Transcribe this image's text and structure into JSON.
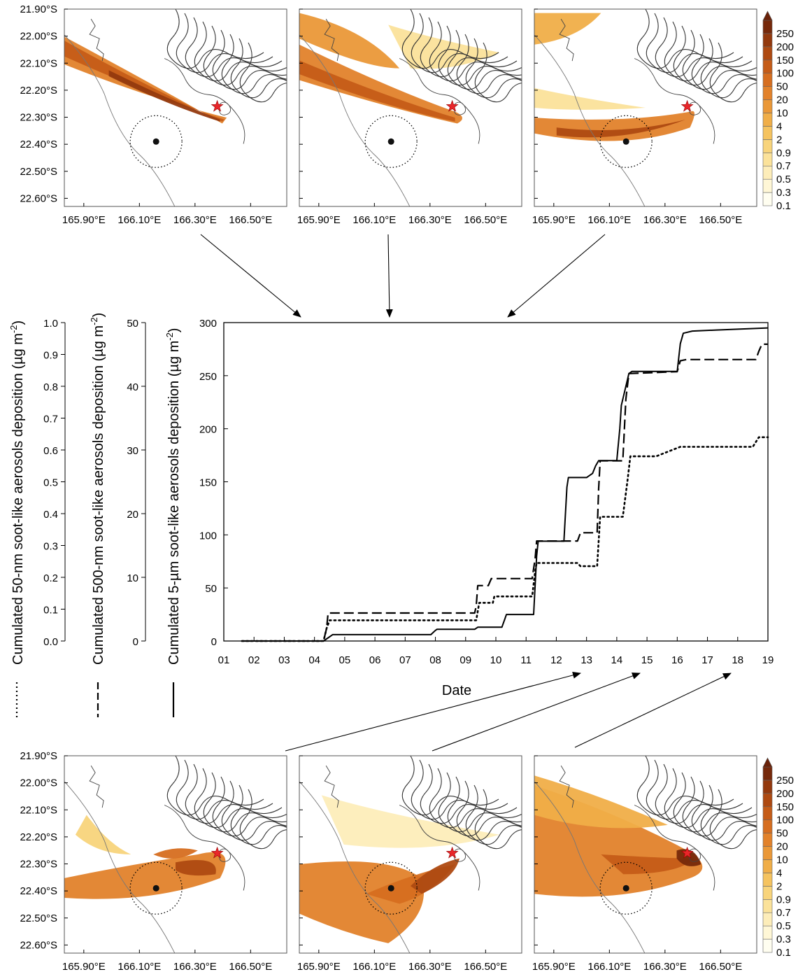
{
  "chart_data": {
    "main": {
      "type": "line",
      "xlabel": "Date",
      "xticks": [
        "01",
        "02",
        "03",
        "04",
        "05",
        "06",
        "07",
        "08",
        "09",
        "10",
        "11",
        "12",
        "13",
        "14",
        "15",
        "16",
        "17",
        "18",
        "19"
      ],
      "xlim": [
        1,
        19
      ],
      "axes": [
        {
          "label_parts": [
            "Cumulated 50-nm soot-like aerosols deposition (µg m",
            "-2",
            ")"
          ],
          "ticks": [
            "0.0",
            "0.1",
            "0.2",
            "0.3",
            "0.4",
            "0.5",
            "0.6",
            "0.7",
            "0.8",
            "0.9",
            "1.0"
          ],
          "ylim": [
            0,
            1.0
          ],
          "legend_style": "dotted"
        },
        {
          "label_parts": [
            "Cumulated 500-nm soot-like aerosols deposition (µg m",
            "-2",
            ")"
          ],
          "ticks": [
            "0",
            "10",
            "20",
            "30",
            "40",
            "50"
          ],
          "ylim": [
            0,
            50
          ],
          "legend_style": "dashed"
        },
        {
          "label_parts": [
            "Cumulated 5-µm soot-like aerosols deposition (µg m",
            "-2",
            ")"
          ],
          "ticks": [
            "0",
            "50",
            "100",
            "150",
            "200",
            "250",
            "300"
          ],
          "ylim": [
            0,
            300
          ],
          "legend_style": "solid"
        }
      ],
      "series": [
        {
          "style": "solid",
          "axis": 2,
          "points": [
            [
              1.6,
              0
            ],
            [
              4.3,
              0
            ],
            [
              4.45,
              3
            ],
            [
              4.6,
              6
            ],
            [
              7.85,
              6
            ],
            [
              8.0,
              10
            ],
            [
              8.05,
              11
            ],
            [
              9.3,
              11
            ],
            [
              9.4,
              13
            ],
            [
              10.2,
              13
            ],
            [
              10.3,
              21
            ],
            [
              10.35,
              25
            ],
            [
              11.25,
              25
            ],
            [
              11.35,
              80
            ],
            [
              11.4,
              94
            ],
            [
              12.25,
              94
            ],
            [
              12.35,
              145
            ],
            [
              12.4,
              154
            ],
            [
              13.0,
              154
            ],
            [
              13.2,
              158
            ],
            [
              13.3,
              165
            ],
            [
              13.4,
              170
            ],
            [
              14.0,
              170
            ],
            [
              14.1,
              200
            ],
            [
              14.15,
              222
            ],
            [
              14.3,
              240
            ],
            [
              14.4,
              252
            ],
            [
              14.5,
              254
            ],
            [
              16.0,
              254
            ],
            [
              16.1,
              280
            ],
            [
              16.2,
              290
            ],
            [
              16.5,
              292
            ],
            [
              17.3,
              293
            ],
            [
              19.0,
              295
            ]
          ]
        },
        {
          "style": "dashed",
          "axis": 1,
          "points": [
            [
              1.6,
              0
            ],
            [
              4.3,
              0
            ],
            [
              4.4,
              2
            ],
            [
              4.45,
              4.4
            ],
            [
              9.3,
              4.4
            ],
            [
              9.35,
              5.5
            ],
            [
              9.4,
              8.7
            ],
            [
              9.75,
              8.7
            ],
            [
              9.85,
              9.8
            ],
            [
              11.2,
              9.8
            ],
            [
              11.3,
              13
            ],
            [
              11.35,
              15.7
            ],
            [
              12.7,
              15.7
            ],
            [
              12.8,
              17
            ],
            [
              13.35,
              17
            ],
            [
              13.4,
              24
            ],
            [
              13.45,
              28.3
            ],
            [
              14.2,
              28.3
            ],
            [
              14.3,
              38
            ],
            [
              14.4,
              42
            ],
            [
              16.0,
              42.3
            ],
            [
              16.1,
              44
            ],
            [
              16.3,
              44.2
            ],
            [
              18.6,
              44.2
            ],
            [
              18.7,
              45.5
            ],
            [
              18.8,
              46.6
            ],
            [
              19.0,
              46.6
            ]
          ]
        },
        {
          "style": "dotted",
          "axis": 0,
          "points": [
            [
              1.6,
              0
            ],
            [
              4.3,
              0
            ],
            [
              4.4,
              0.04
            ],
            [
              4.5,
              0.065
            ],
            [
              9.35,
              0.065
            ],
            [
              9.45,
              0.12
            ],
            [
              9.9,
              0.12
            ],
            [
              9.95,
              0.14
            ],
            [
              11.2,
              0.14
            ],
            [
              11.3,
              0.22
            ],
            [
              11.35,
              0.245
            ],
            [
              12.7,
              0.245
            ],
            [
              12.8,
              0.235
            ],
            [
              13.35,
              0.235
            ],
            [
              13.45,
              0.39
            ],
            [
              13.6,
              0.39
            ],
            [
              14.2,
              0.39
            ],
            [
              14.35,
              0.5
            ],
            [
              14.45,
              0.58
            ],
            [
              15.1,
              0.58
            ],
            [
              15.3,
              0.58
            ],
            [
              16.1,
              0.61
            ],
            [
              17.1,
              0.61
            ],
            [
              18.5,
              0.61
            ],
            [
              18.7,
              0.64
            ],
            [
              19.0,
              0.64
            ]
          ]
        }
      ]
    },
    "maps": {
      "type": "heatmap",
      "lat_ticks": [
        "21.90°S",
        "22.00°S",
        "22.10°S",
        "22.20°S",
        "22.30°S",
        "22.40°S",
        "22.50°S",
        "22.60°S"
      ],
      "lon_ticks": [
        "165.90°E",
        "166.10°E",
        "166.30°E",
        "166.50°E"
      ],
      "colorbar_levels": [
        "0.1",
        "0.3",
        "0.5",
        "0.7",
        "0.9",
        "2",
        "4",
        "10",
        "20",
        "50",
        "100",
        "150",
        "200",
        "250"
      ],
      "colorbar_colors": [
        "#fffef0",
        "#fff7d6",
        "#fdedb9",
        "#fbe29a",
        "#f8d47b",
        "#f5c35f",
        "#f0ae48",
        "#ea9838",
        "#e2822b",
        "#d66e20",
        "#c55c18",
        "#ae4a12",
        "#93390e",
        "#76290b"
      ],
      "colors": {
        "star": "#e8262a",
        "marker": "#111111"
      }
    }
  }
}
